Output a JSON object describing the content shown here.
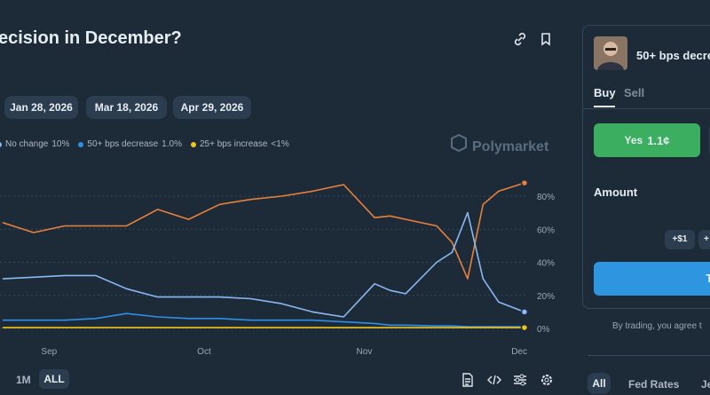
{
  "header": {
    "title": "ecision in December?"
  },
  "date_pills": [
    "Jan 28, 2026",
    "Mar 18, 2026",
    "Apr 29, 2026"
  ],
  "chart_data": {
    "type": "line",
    "watermark": "Polymarket",
    "x": [
      -9,
      -3,
      3,
      9,
      15,
      21,
      27,
      33,
      39,
      45,
      51,
      57,
      63,
      66,
      69,
      75,
      78,
      81,
      84,
      87,
      92
    ],
    "xlim": [
      -9.5,
      92.7
    ],
    "xticks": [
      {
        "value": 0,
        "label": "Sep"
      },
      {
        "value": 30,
        "label": "Oct"
      },
      {
        "value": 61,
        "label": "Nov"
      },
      {
        "value": 91,
        "label": "Dec"
      }
    ],
    "ylim": [
      0,
      100
    ],
    "yticks": [
      {
        "value": 0,
        "label": "0%"
      },
      {
        "value": 20,
        "label": "20%"
      },
      {
        "value": 40,
        "label": "40%"
      },
      {
        "value": 60,
        "label": "60%"
      },
      {
        "value": 80,
        "label": "80%"
      }
    ],
    "grid": true,
    "series": [
      {
        "color": "#e8803a",
        "values": [
          64,
          58,
          62,
          62,
          62,
          72,
          66,
          75,
          78,
          80,
          83,
          87,
          67,
          68,
          66,
          62,
          52,
          30,
          75,
          83,
          88
        ]
      },
      {
        "name": "No change",
        "current_label": "10%",
        "color": "#8ab8f0",
        "values": [
          30,
          31,
          32,
          32,
          24,
          19,
          19,
          19,
          18,
          15,
          10,
          7,
          27,
          23,
          21,
          40,
          46,
          70,
          30,
          16,
          10
        ]
      },
      {
        "name": "50+ bps decrease",
        "current_label": "1.0%",
        "color": "#2e8fe6",
        "values": [
          5,
          5,
          5,
          6,
          9,
          7,
          6,
          6,
          5,
          5,
          5,
          4,
          3,
          2,
          2,
          1.5,
          1.5,
          1,
          1,
          1,
          1.0
        ]
      },
      {
        "name": "25+ bps increase",
        "current_label": "<1%",
        "color": "#f0c419",
        "values": [
          0.5,
          0.5,
          0.5,
          0.5,
          0.5,
          0.5,
          0.5,
          0.5,
          0.5,
          0.5,
          0.5,
          0.5,
          0.5,
          0.5,
          0.5,
          0.5,
          0.5,
          0.5,
          0.5,
          0.5,
          0.5
        ]
      }
    ]
  },
  "range_buttons": [
    "1M",
    "ALL"
  ],
  "trade_panel": {
    "market": "50+ bps decre",
    "tabs": [
      "Buy",
      "Sell"
    ],
    "yes_button": {
      "label": "Yes",
      "price": "1.1¢"
    },
    "amount_label": "Amount",
    "quick_add": [
      "+$1",
      "+"
    ],
    "trade_button": "Trad",
    "disclaimer": "By trading, you agree t"
  },
  "bottom_tabs": [
    "All",
    "Fed Rates",
    "Je"
  ]
}
